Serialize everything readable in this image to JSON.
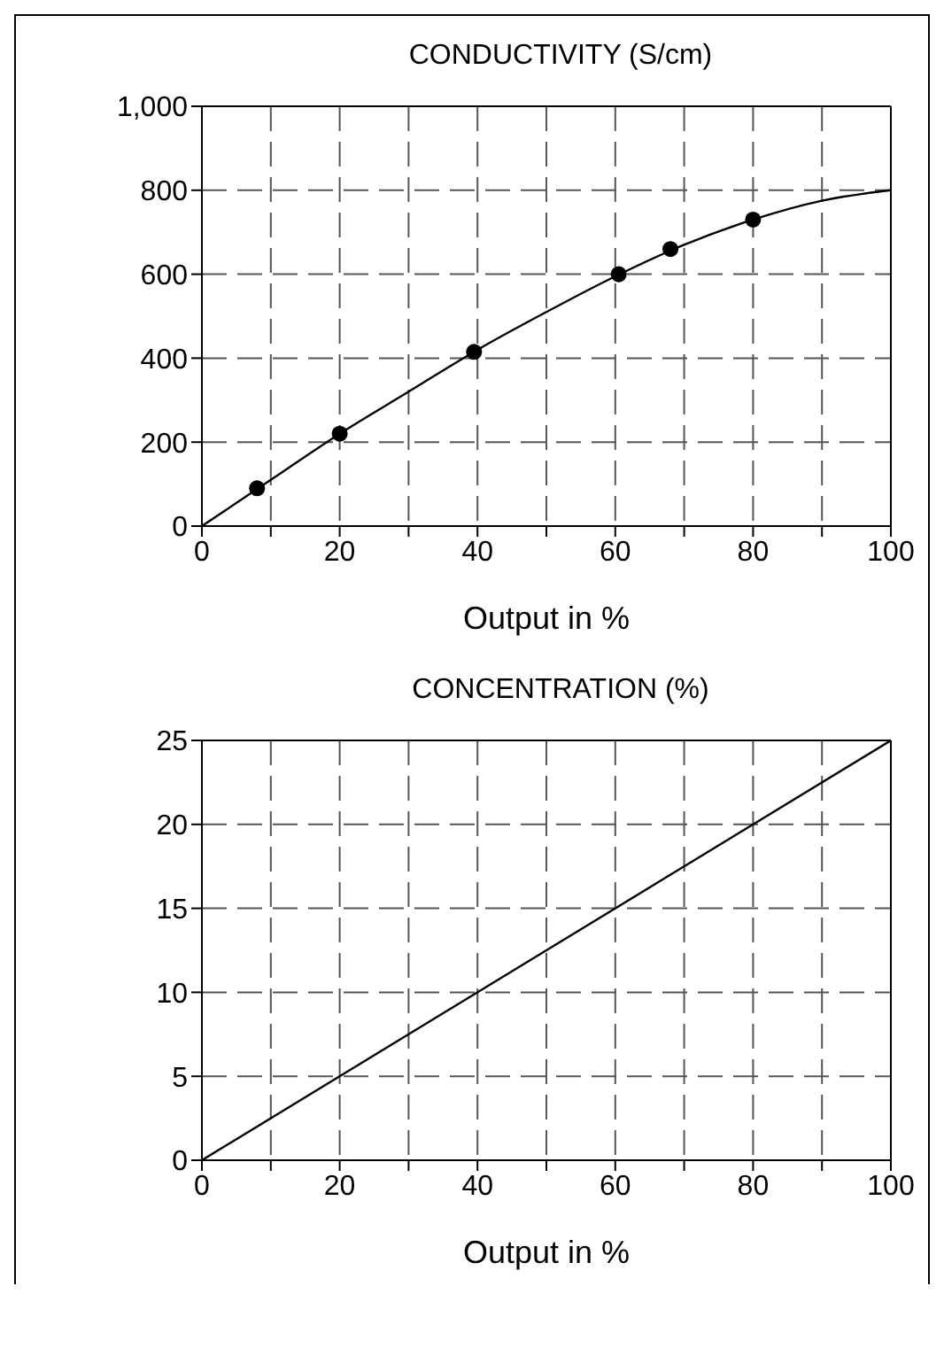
{
  "chart_data": [
    {
      "type": "line",
      "title": "CONDUCTIVITY (S/cm)",
      "xlabel": "Output in %",
      "xlim": [
        0,
        100
      ],
      "xticks": [
        0,
        {
          "value": 10,
          "label": null
        },
        20,
        {
          "value": 30,
          "label": null
        },
        40,
        {
          "value": 50,
          "label": null
        },
        60,
        {
          "value": 70,
          "label": null
        },
        80,
        {
          "value": 90,
          "label": null
        },
        100
      ],
      "ylim": [
        0,
        1000
      ],
      "yticks": [
        0,
        200,
        400,
        600,
        800,
        {
          "value": 1000,
          "label": "1,000"
        }
      ],
      "grid": true,
      "line_style": "solid",
      "series": [
        {
          "color": "#000000",
          "marker": "none",
          "x": [
            0,
            10,
            20,
            30,
            40,
            50,
            60,
            70,
            80,
            90,
            100
          ],
          "values": [
            0,
            110,
            220,
            320,
            420,
            510,
            595,
            670,
            730,
            775,
            800
          ]
        },
        {
          "type": "scatter",
          "color": "#000000",
          "marker": "circle",
          "x": [
            8,
            20,
            39.5,
            60.5,
            68,
            80
          ],
          "values": [
            90,
            220,
            415,
            600,
            660,
            730
          ]
        }
      ]
    },
    {
      "type": "line",
      "title": "CONCENTRATION (%)",
      "xlabel": "Output in %",
      "xlim": [
        0,
        100
      ],
      "xticks": [
        0,
        {
          "value": 10,
          "label": null
        },
        20,
        {
          "value": 30,
          "label": null
        },
        40,
        {
          "value": 50,
          "label": null
        },
        60,
        {
          "value": 70,
          "label": null
        },
        80,
        {
          "value": 90,
          "label": null
        },
        100
      ],
      "ylim": [
        0,
        25
      ],
      "yticks": [
        0,
        5,
        10,
        15,
        20,
        25
      ],
      "grid": true,
      "line_style": "solid",
      "series": [
        {
          "color": "#000000",
          "marker": "none",
          "x": [
            0,
            100
          ],
          "values": [
            0,
            25
          ]
        }
      ]
    }
  ]
}
